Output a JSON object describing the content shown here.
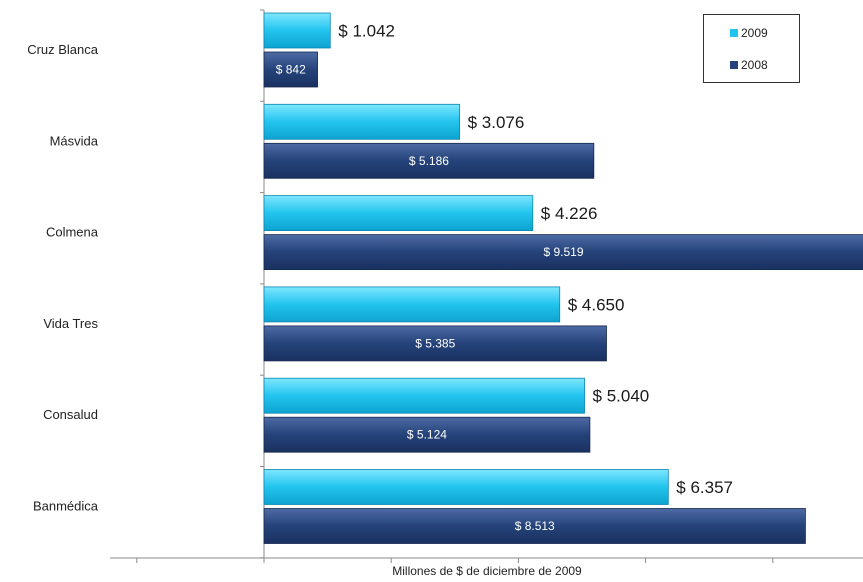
{
  "chart_data": {
    "type": "bar",
    "orientation": "horizontal",
    "categories": [
      "Cruz Blanca",
      "Másvida",
      "Colmena",
      "Vida Tres",
      "Consalud",
      "Banmédica"
    ],
    "series": [
      {
        "name": "2009",
        "values": [
          1042,
          3076,
          4226,
          4650,
          5040,
          6357
        ],
        "labels": [
          "$ 1.042",
          "$ 3.076",
          "$ 4.226",
          "$ 4.650",
          "$ 5.040",
          "$ 6.357"
        ],
        "color": "#22c4ee"
      },
      {
        "name": "2008",
        "values": [
          842,
          5186,
          9519,
          5385,
          5124,
          8513
        ],
        "labels": [
          "$ 842",
          "$ 5.186",
          "$ 9.519",
          "$ 5.385",
          "$ 5.124",
          "$ 8.513"
        ],
        "color": "#25437a"
      }
    ],
    "title": "",
    "xlabel": "Millones de $ de diciembre de 2009",
    "ylabel": "",
    "xlim": [
      -10000,
      10000
    ],
    "grid": false,
    "legend_position": "top-right"
  }
}
